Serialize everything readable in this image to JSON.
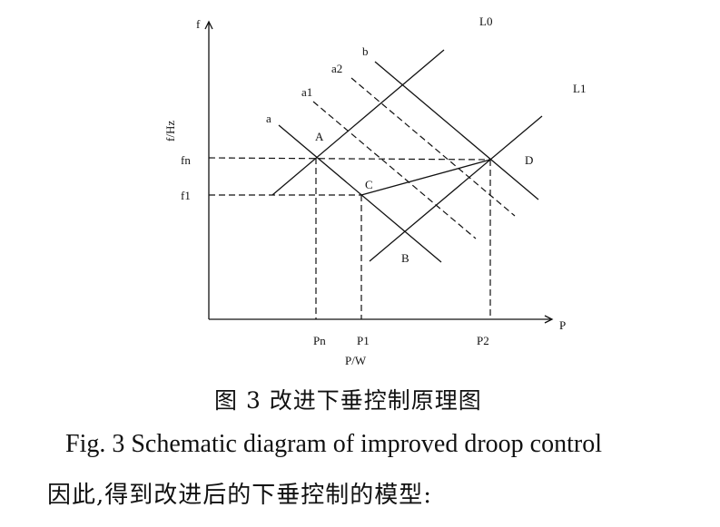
{
  "figure": {
    "axis_labels": {
      "y_arrow": "f",
      "y_title": "f/Hz",
      "x_arrow": "P",
      "x_title": "P/W"
    },
    "y_ticks": [
      "fn",
      "f1"
    ],
    "x_ticks": [
      "Pn",
      "P1",
      "P2"
    ],
    "line_labels": {
      "L0": "L0",
      "L1": "L1",
      "a": "a",
      "a1": "a1",
      "a2": "a2",
      "b": "b"
    },
    "points": {
      "A": "A",
      "B": "B",
      "C": "C",
      "D": "D"
    }
  },
  "caption_cn": "图 3 改进下垂控制原理图",
  "caption_en": "Fig. 3 Schematic diagram of improved droop control",
  "body_text": "因此,得到改进后的下垂控制的模型:"
}
